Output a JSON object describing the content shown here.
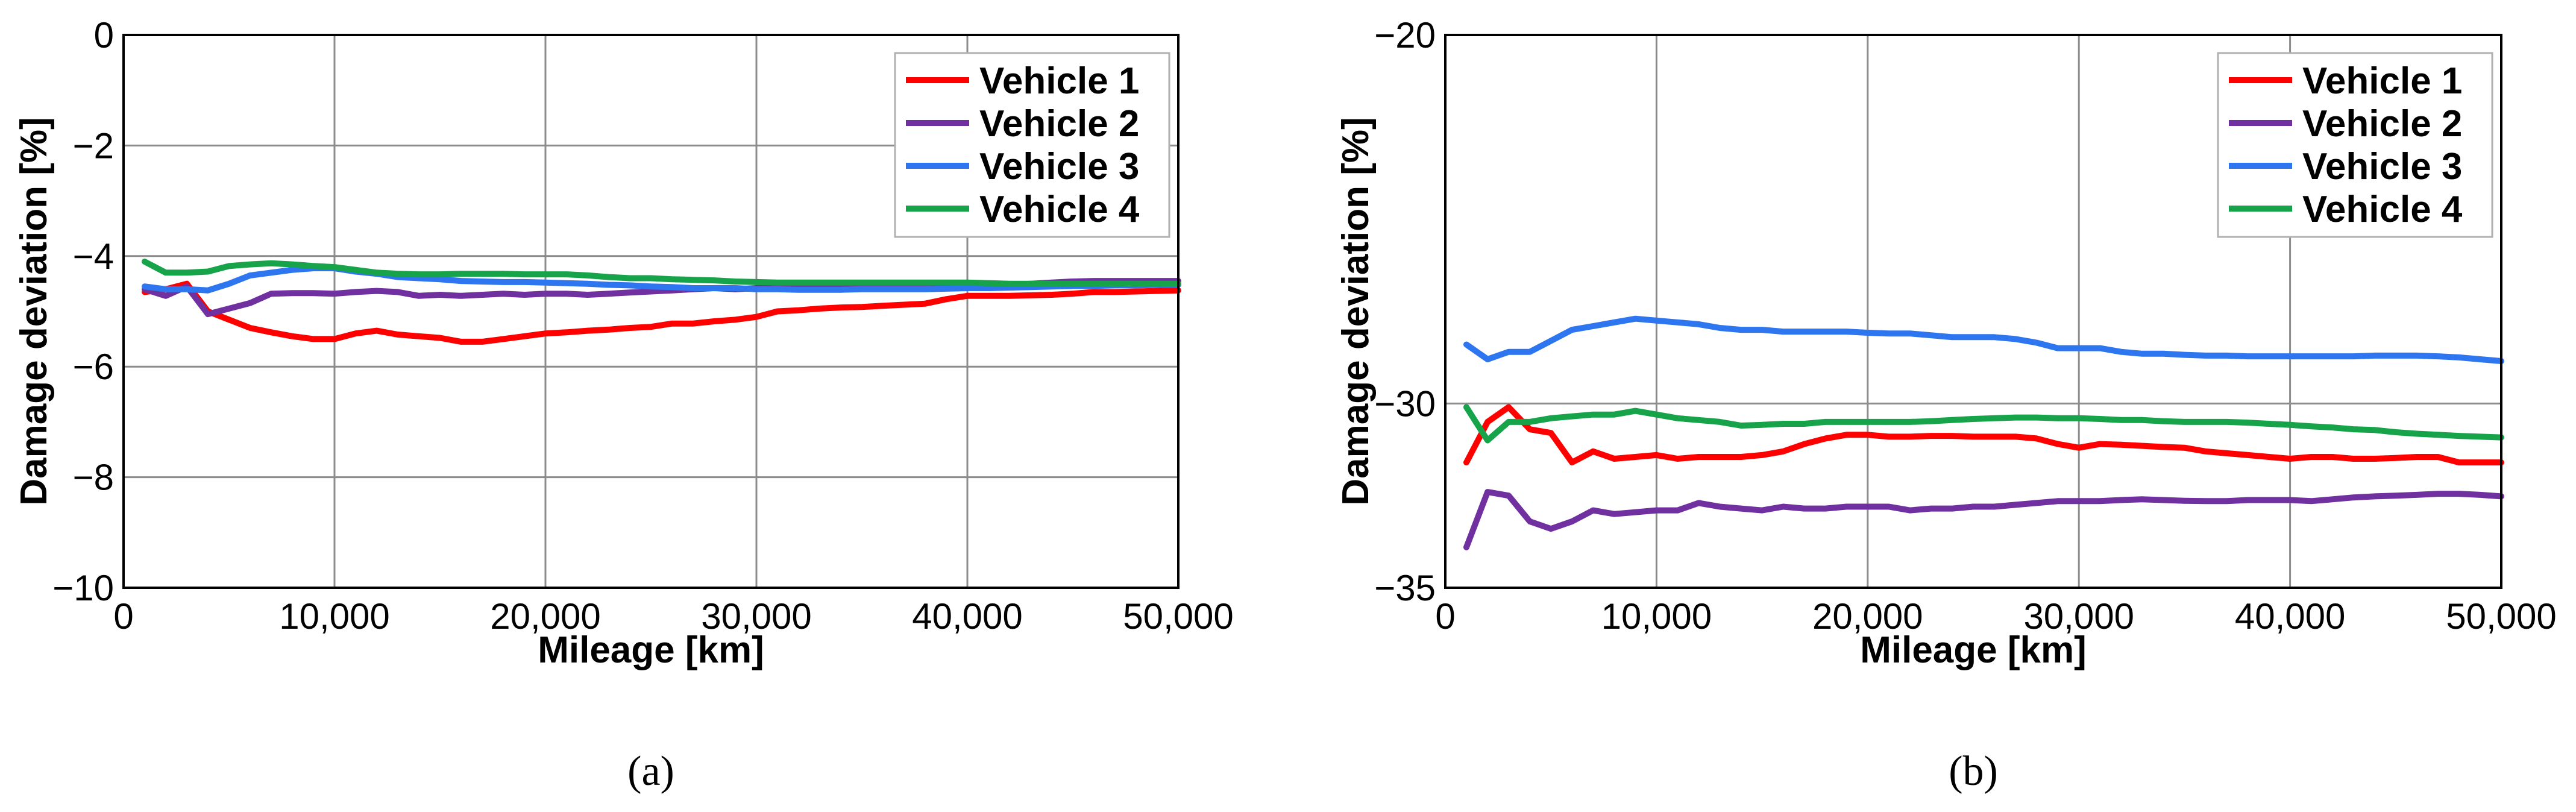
{
  "chart_data": [
    {
      "type": "line",
      "panel_label": "(a)",
      "xlabel": "Mileage [km]",
      "ylabel": "Damage deviation [%]",
      "xlim": [
        0,
        50000
      ],
      "ylim": [
        -10,
        0
      ],
      "xticks": [
        0,
        10000,
        20000,
        30000,
        40000,
        50000
      ],
      "xtick_labels": [
        "0",
        "10,000",
        "20,000",
        "30,000",
        "40,000",
        "50,000"
      ],
      "yticks": [
        0,
        -2,
        -4,
        -6,
        -8,
        -10
      ],
      "ytick_labels": [
        "0",
        "−2",
        "−4",
        "−6",
        "−8",
        "−10"
      ],
      "grid": true,
      "legend_position": "top-right",
      "x": [
        1000,
        2000,
        3000,
        4000,
        5000,
        6000,
        7000,
        8000,
        9000,
        10000,
        11000,
        12000,
        13000,
        14000,
        15000,
        16000,
        17000,
        18000,
        19000,
        20000,
        21000,
        22000,
        23000,
        24000,
        25000,
        26000,
        27000,
        28000,
        29000,
        30000,
        31000,
        32000,
        33000,
        34000,
        35000,
        36000,
        37000,
        38000,
        39000,
        40000,
        41000,
        42000,
        43000,
        44000,
        45000,
        46000,
        47000,
        48000,
        49000,
        50000
      ],
      "series": [
        {
          "name": "Vehicle 1",
          "color": "#ff0000",
          "values": [
            -4.65,
            -4.6,
            -4.5,
            -5.0,
            -5.15,
            -5.3,
            -5.38,
            -5.45,
            -5.5,
            -5.5,
            -5.4,
            -5.35,
            -5.42,
            -5.45,
            -5.48,
            -5.55,
            -5.55,
            -5.5,
            -5.45,
            -5.4,
            -5.38,
            -5.35,
            -5.33,
            -5.3,
            -5.28,
            -5.22,
            -5.22,
            -5.18,
            -5.15,
            -5.1,
            -5.0,
            -4.98,
            -4.95,
            -4.93,
            -4.92,
            -4.9,
            -4.88,
            -4.86,
            -4.78,
            -4.72,
            -4.72,
            -4.72,
            -4.71,
            -4.7,
            -4.68,
            -4.65,
            -4.65,
            -4.64,
            -4.63,
            -4.62
          ]
        },
        {
          "name": "Vehicle 2",
          "color": "#7030a0",
          "values": [
            -4.6,
            -4.72,
            -4.55,
            -5.05,
            -4.95,
            -4.85,
            -4.68,
            -4.67,
            -4.67,
            -4.68,
            -4.65,
            -4.63,
            -4.65,
            -4.72,
            -4.7,
            -4.72,
            -4.7,
            -4.68,
            -4.7,
            -4.68,
            -4.68,
            -4.7,
            -4.68,
            -4.66,
            -4.64,
            -4.62,
            -4.6,
            -4.58,
            -4.6,
            -4.58,
            -4.58,
            -4.57,
            -4.58,
            -4.57,
            -4.56,
            -4.57,
            -4.56,
            -4.55,
            -4.55,
            -4.54,
            -4.53,
            -4.52,
            -4.5,
            -4.48,
            -4.46,
            -4.45,
            -4.45,
            -4.45,
            -4.45,
            -4.45
          ]
        },
        {
          "name": "Vehicle 3",
          "color": "#2e75f0",
          "values": [
            -4.55,
            -4.6,
            -4.6,
            -4.62,
            -4.5,
            -4.35,
            -4.3,
            -4.25,
            -4.22,
            -4.22,
            -4.28,
            -4.32,
            -4.38,
            -4.4,
            -4.42,
            -4.45,
            -4.46,
            -4.47,
            -4.47,
            -4.48,
            -4.49,
            -4.5,
            -4.52,
            -4.53,
            -4.55,
            -4.56,
            -4.58,
            -4.58,
            -4.58,
            -4.6,
            -4.6,
            -4.61,
            -4.61,
            -4.61,
            -4.6,
            -4.6,
            -4.6,
            -4.6,
            -4.59,
            -4.58,
            -4.58,
            -4.57,
            -4.56,
            -4.55,
            -4.54,
            -4.54,
            -4.53,
            -4.53,
            -4.52,
            -4.52
          ]
        },
        {
          "name": "Vehicle 4",
          "color": "#16a34a",
          "values": [
            -4.1,
            -4.3,
            -4.3,
            -4.28,
            -4.18,
            -4.15,
            -4.13,
            -4.15,
            -4.18,
            -4.2,
            -4.25,
            -4.3,
            -4.32,
            -4.33,
            -4.33,
            -4.32,
            -4.32,
            -4.32,
            -4.33,
            -4.33,
            -4.33,
            -4.35,
            -4.38,
            -4.4,
            -4.4,
            -4.42,
            -4.43,
            -4.44,
            -4.46,
            -4.47,
            -4.48,
            -4.48,
            -4.48,
            -4.48,
            -4.48,
            -4.48,
            -4.48,
            -4.48,
            -4.48,
            -4.48,
            -4.49,
            -4.5,
            -4.5,
            -4.5,
            -4.5,
            -4.5,
            -4.5,
            -4.5,
            -4.5,
            -4.5
          ]
        }
      ]
    },
    {
      "type": "line",
      "panel_label": "(b)",
      "xlabel": "Mileage [km]",
      "ylabel": "Damage deviation [%]",
      "xlim": [
        0,
        50000
      ],
      "ylim": [
        -35,
        -20
      ],
      "xticks": [
        0,
        10000,
        20000,
        30000,
        40000,
        50000
      ],
      "xtick_labels": [
        "0",
        "10,000",
        "20,000",
        "30,000",
        "40,000",
        "50,000"
      ],
      "yticks": [
        -20,
        -30,
        -35
      ],
      "ytick_labels": [
        "−20",
        "−30",
        "−35"
      ],
      "grid": true,
      "legend_position": "top-right",
      "x": [
        1000,
        2000,
        3000,
        4000,
        5000,
        6000,
        7000,
        8000,
        9000,
        10000,
        11000,
        12000,
        13000,
        14000,
        15000,
        16000,
        17000,
        18000,
        19000,
        20000,
        21000,
        22000,
        23000,
        24000,
        25000,
        26000,
        27000,
        28000,
        29000,
        30000,
        31000,
        32000,
        33000,
        34000,
        35000,
        36000,
        37000,
        38000,
        39000,
        40000,
        41000,
        42000,
        43000,
        44000,
        45000,
        46000,
        47000,
        48000,
        49000,
        50000
      ],
      "series": [
        {
          "name": "Vehicle 1",
          "color": "#ff0000",
          "values": [
            -31.6,
            -30.5,
            -30.1,
            -30.7,
            -30.8,
            -31.6,
            -31.3,
            -31.5,
            -31.45,
            -31.4,
            -31.5,
            -31.45,
            -31.45,
            -31.45,
            -31.4,
            -31.3,
            -31.1,
            -30.95,
            -30.85,
            -30.85,
            -30.9,
            -30.9,
            -30.88,
            -30.88,
            -30.9,
            -30.9,
            -30.9,
            -30.95,
            -31.1,
            -31.2,
            -31.1,
            -31.12,
            -31.15,
            -31.18,
            -31.2,
            -31.3,
            -31.35,
            -31.4,
            -31.45,
            -31.5,
            -31.45,
            -31.45,
            -31.5,
            -31.5,
            -31.48,
            -31.45,
            -31.45,
            -31.6,
            -31.6,
            -31.6
          ]
        },
        {
          "name": "Vehicle 2",
          "color": "#7030a0",
          "values": [
            -33.9,
            -32.4,
            -32.5,
            -33.2,
            -33.4,
            -33.2,
            -32.9,
            -33.0,
            -32.95,
            -32.9,
            -32.9,
            -32.7,
            -32.8,
            -32.85,
            -32.9,
            -32.8,
            -32.85,
            -32.85,
            -32.8,
            -32.8,
            -32.8,
            -32.9,
            -32.85,
            -32.85,
            -32.8,
            -32.8,
            -32.75,
            -32.7,
            -32.65,
            -32.65,
            -32.65,
            -32.62,
            -32.6,
            -32.62,
            -32.64,
            -32.65,
            -32.65,
            -32.62,
            -32.62,
            -32.62,
            -32.65,
            -32.6,
            -32.55,
            -32.52,
            -32.5,
            -32.48,
            -32.45,
            -32.45,
            -32.48,
            -32.52
          ]
        },
        {
          "name": "Vehicle 3",
          "color": "#2e75f0",
          "values": [
            -28.4,
            -28.8,
            -28.6,
            -28.6,
            -28.3,
            -28.0,
            -27.9,
            -27.8,
            -27.7,
            -27.75,
            -27.8,
            -27.85,
            -27.95,
            -28.0,
            -28.0,
            -28.05,
            -28.05,
            -28.05,
            -28.05,
            -28.08,
            -28.1,
            -28.1,
            -28.15,
            -28.2,
            -28.2,
            -28.2,
            -28.25,
            -28.35,
            -28.5,
            -28.5,
            -28.5,
            -28.6,
            -28.65,
            -28.65,
            -28.68,
            -28.7,
            -28.7,
            -28.72,
            -28.72,
            -28.72,
            -28.72,
            -28.72,
            -28.72,
            -28.7,
            -28.7,
            -28.7,
            -28.72,
            -28.75,
            -28.8,
            -28.85
          ]
        },
        {
          "name": "Vehicle 4",
          "color": "#16a34a",
          "values": [
            -30.1,
            -31.0,
            -30.5,
            -30.5,
            -30.4,
            -30.35,
            -30.3,
            -30.3,
            -30.2,
            -30.3,
            -30.4,
            -30.45,
            -30.5,
            -30.6,
            -30.58,
            -30.55,
            -30.55,
            -30.5,
            -30.5,
            -30.5,
            -30.5,
            -30.5,
            -30.48,
            -30.45,
            -30.42,
            -30.4,
            -30.38,
            -30.38,
            -30.4,
            -30.4,
            -30.42,
            -30.45,
            -30.45,
            -30.48,
            -30.5,
            -30.5,
            -30.5,
            -30.52,
            -30.55,
            -30.58,
            -30.62,
            -30.65,
            -30.7,
            -30.72,
            -30.78,
            -30.82,
            -30.85,
            -30.88,
            -30.9,
            -30.92
          ]
        }
      ]
    }
  ]
}
